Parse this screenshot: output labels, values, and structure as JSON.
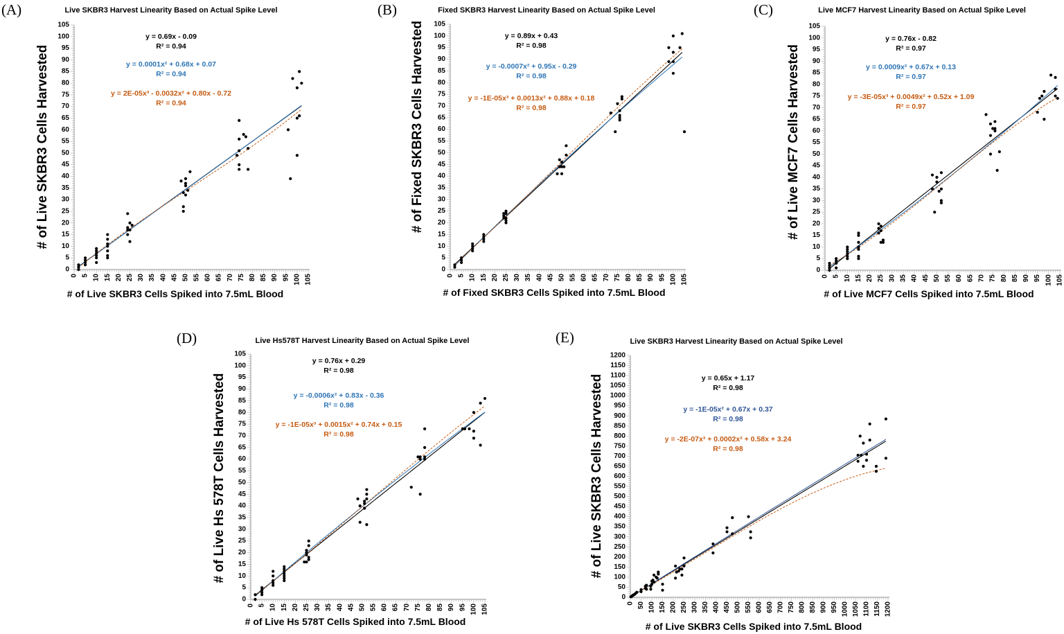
{
  "chart_data": [
    {
      "type": "scatter",
      "panel": "(A)",
      "title": "Live SKBR3 Harvest Linearity Based on Actual Spike Level",
      "xlabel": "# of Live SKBR3 Cells Spiked into 7.5mL Blood",
      "ylabel": "# of Live SKBR3 Cells Harvested",
      "xlim": [
        0,
        105
      ],
      "ylim": [
        0,
        105
      ],
      "tick_step": 5,
      "minor_step": 1,
      "fits": [
        {
          "kind": "linear",
          "equation": "y = 0.69x - 0.09",
          "r2": "R² = 0.94",
          "coef": [
            -0.09,
            0.69
          ],
          "color": "#000000"
        },
        {
          "kind": "quadratic",
          "equation": "y = 0.0001x² + 0.68x + 0.07",
          "r2": "R² = 0.94",
          "coef": [
            0.07,
            0.68,
            0.0001
          ],
          "color": "#2e75b6"
        },
        {
          "kind": "cubic",
          "equation": "y = 2E-05x³ - 0.0032x² + 0.80x - 0.72",
          "r2": "R² = 0.94",
          "coef": [
            -0.72,
            0.8,
            -0.0032,
            2e-05
          ],
          "color": "#c55a11"
        }
      ],
      "fit_range": [
        2,
        102
      ],
      "points": [
        [
          2,
          0
        ],
        [
          2,
          1
        ],
        [
          2,
          2
        ],
        [
          5,
          2
        ],
        [
          5,
          3
        ],
        [
          5,
          4
        ],
        [
          5,
          5
        ],
        [
          10,
          3
        ],
        [
          10,
          5
        ],
        [
          10,
          6
        ],
        [
          10,
          7
        ],
        [
          10,
          8
        ],
        [
          10,
          9
        ],
        [
          15,
          5
        ],
        [
          15,
          6
        ],
        [
          15,
          8
        ],
        [
          15,
          10
        ],
        [
          15,
          11
        ],
        [
          15,
          13
        ],
        [
          15,
          15
        ],
        [
          24,
          15
        ],
        [
          24,
          17
        ],
        [
          24,
          18
        ],
        [
          24,
          24
        ],
        [
          25,
          12
        ],
        [
          25,
          17
        ],
        [
          25,
          20
        ],
        [
          26,
          19
        ],
        [
          48,
          38
        ],
        [
          49,
          25
        ],
        [
          49,
          27
        ],
        [
          49,
          33
        ],
        [
          50,
          32
        ],
        [
          50,
          36
        ],
        [
          50,
          37
        ],
        [
          50,
          39
        ],
        [
          51,
          34
        ],
        [
          52,
          42
        ],
        [
          73,
          49
        ],
        [
          74,
          43
        ],
        [
          74,
          45
        ],
        [
          74,
          51
        ],
        [
          74,
          56
        ],
        [
          74,
          64
        ],
        [
          76,
          58
        ],
        [
          77,
          57
        ],
        [
          78,
          43
        ],
        [
          78,
          52
        ],
        [
          96,
          60
        ],
        [
          97,
          39
        ],
        [
          98,
          82
        ],
        [
          100,
          49
        ],
        [
          100,
          65
        ],
        [
          100,
          78
        ],
        [
          101,
          66
        ],
        [
          101,
          85
        ],
        [
          102,
          80
        ]
      ]
    },
    {
      "type": "scatter",
      "panel": "(B)",
      "title": "Fixed SKBR3 Harvest Linearity Based on Actual Spike Level",
      "xlabel": "# of Fixed SKBR3 Cells Spiked into 7.5mL Blood",
      "ylabel": "# of Fixed SKBR3 Cells Harvested",
      "xlim": [
        0,
        105
      ],
      "ylim": [
        0,
        105
      ],
      "tick_step": 5,
      "minor_step": 1,
      "fits": [
        {
          "kind": "linear",
          "equation": "y = 0.89x + 0.43",
          "r2": "R² = 0.98",
          "coef": [
            0.43,
            0.89
          ],
          "color": "#000000"
        },
        {
          "kind": "quadratic",
          "equation": "y = -0.0007x² + 0.95x - 0.29",
          "r2": "R² = 0.98",
          "coef": [
            -0.29,
            0.95,
            -0.0007
          ],
          "color": "#2e75b6"
        },
        {
          "kind": "cubic",
          "equation": "y = -1E-05x³ + 0.0013x² + 0.88x + 0.18",
          "r2": "R² = 0.98",
          "coef": [
            0.18,
            0.88,
            0.0013,
            -1e-05
          ],
          "color": "#c55a11"
        }
      ],
      "fit_range": [
        2,
        104
      ],
      "points": [
        [
          2,
          1
        ],
        [
          2,
          2
        ],
        [
          5,
          3
        ],
        [
          5,
          4
        ],
        [
          5,
          5
        ],
        [
          10,
          8
        ],
        [
          10,
          9
        ],
        [
          10,
          10
        ],
        [
          10,
          11
        ],
        [
          15,
          12
        ],
        [
          15,
          13
        ],
        [
          15,
          14
        ],
        [
          15,
          15
        ],
        [
          24,
          22
        ],
        [
          24,
          23
        ],
        [
          24,
          24
        ],
        [
          25,
          20
        ],
        [
          25,
          21
        ],
        [
          25,
          22
        ],
        [
          25,
          24
        ],
        [
          25,
          25
        ],
        [
          48,
          41
        ],
        [
          49,
          44
        ],
        [
          49,
          47
        ],
        [
          50,
          41
        ],
        [
          50,
          44
        ],
        [
          50,
          46
        ],
        [
          51,
          44
        ],
        [
          52,
          49
        ],
        [
          52,
          53
        ],
        [
          72,
          67
        ],
        [
          74,
          59
        ],
        [
          75,
          71
        ],
        [
          76,
          64
        ],
        [
          76,
          65
        ],
        [
          76,
          66
        ],
        [
          76,
          68
        ],
        [
          77,
          73
        ],
        [
          77,
          74
        ],
        [
          98,
          89
        ],
        [
          98,
          95
        ],
        [
          100,
          84
        ],
        [
          100,
          89
        ],
        [
          100,
          93
        ],
        [
          100,
          100
        ],
        [
          103,
          95
        ],
        [
          104,
          101
        ],
        [
          105,
          59
        ]
      ]
    },
    {
      "type": "scatter",
      "panel": "(C)",
      "title": "Live MCF7 Harvest Linearity Based on Actual Spike Level",
      "xlabel": "# of Live MCF7 Cells Spiked into 7.5mL Blood",
      "ylabel": "# of Live MCF7 Cells Harvested",
      "xlim": [
        0,
        105
      ],
      "ylim": [
        0,
        105
      ],
      "tick_step": 5,
      "minor_step": 1,
      "fits": [
        {
          "kind": "linear",
          "equation": "y = 0.76x - 0.82",
          "r2": "R² = 0.97",
          "coef": [
            -0.82,
            0.76
          ],
          "color": "#000000"
        },
        {
          "kind": "quadratic",
          "equation": "y = 0.0009x² + 0.67x + 0.13",
          "r2": "R² = 0.97",
          "coef": [
            0.13,
            0.67,
            0.0009
          ],
          "color": "#2e75b6"
        },
        {
          "kind": "cubic",
          "equation": "y = -3E-05x³ + 0.0049x² + 0.52x + 1.09",
          "r2": "R² = 0.97",
          "coef": [
            1.09,
            0.52,
            0.0049,
            -3e-05
          ],
          "color": "#c55a11"
        }
      ],
      "fit_range": [
        2,
        104
      ],
      "points": [
        [
          2,
          0
        ],
        [
          2,
          1
        ],
        [
          2,
          2
        ],
        [
          2,
          3
        ],
        [
          5,
          1
        ],
        [
          5,
          3
        ],
        [
          5,
          4
        ],
        [
          5,
          5
        ],
        [
          10,
          5
        ],
        [
          10,
          6
        ],
        [
          10,
          7
        ],
        [
          10,
          8
        ],
        [
          10,
          9
        ],
        [
          10,
          10
        ],
        [
          15,
          5
        ],
        [
          15,
          6
        ],
        [
          15,
          9
        ],
        [
          15,
          10
        ],
        [
          15,
          12
        ],
        [
          15,
          15
        ],
        [
          15,
          16
        ],
        [
          24,
          16
        ],
        [
          24,
          18
        ],
        [
          24,
          20
        ],
        [
          25,
          17
        ],
        [
          25,
          19
        ],
        [
          25,
          12
        ],
        [
          26,
          12
        ],
        [
          26,
          13
        ],
        [
          48,
          35
        ],
        [
          48,
          41
        ],
        [
          49,
          25
        ],
        [
          50,
          38
        ],
        [
          50,
          40
        ],
        [
          51,
          34
        ],
        [
          52,
          29
        ],
        [
          52,
          30
        ],
        [
          52,
          35
        ],
        [
          52,
          42
        ],
        [
          72,
          67
        ],
        [
          74,
          50
        ],
        [
          74,
          58
        ],
        [
          74,
          63
        ],
        [
          75,
          61
        ],
        [
          76,
          60
        ],
        [
          76,
          61
        ],
        [
          76,
          64
        ],
        [
          77,
          43
        ],
        [
          78,
          51
        ],
        [
          95,
          68
        ],
        [
          96,
          74
        ],
        [
          97,
          75
        ],
        [
          98,
          65
        ],
        [
          98,
          77
        ],
        [
          101,
          84
        ],
        [
          103,
          75
        ],
        [
          103,
          78
        ],
        [
          103,
          83
        ],
        [
          104,
          74
        ]
      ]
    },
    {
      "type": "scatter",
      "panel": "(D)",
      "title": "Live Hs578T Harvest Linearity Based on Actual Spike Level",
      "xlabel": "# of Live Hs 578T Cells Spiked into 7.5mL Blood",
      "ylabel": "# of Live Hs 578T Cells Harvested",
      "xlim": [
        0,
        105
      ],
      "ylim": [
        0,
        105
      ],
      "tick_step": 5,
      "minor_step": 1,
      "fits": [
        {
          "kind": "linear",
          "equation": "y = 0.76x + 0.29",
          "r2": "R² = 0.98",
          "coef": [
            0.29,
            0.76
          ],
          "color": "#000000"
        },
        {
          "kind": "quadratic",
          "equation": "y = -0.0006x² + 0.83x - 0.36",
          "r2": "R² = 0.98",
          "coef": [
            -0.36,
            0.83,
            -0.0006
          ],
          "color": "#2e75b6"
        },
        {
          "kind": "cubic",
          "equation": "y = -1E-05x³ + 0.0015x² + 0.74x + 0.15",
          "r2": "R² = 0.98",
          "coef": [
            0.15,
            0.74,
            0.0015,
            -1e-05
          ],
          "color": "#c55a11"
        }
      ],
      "fit_range": [
        2,
        105
      ],
      "points": [
        [
          2,
          0
        ],
        [
          2,
          2
        ],
        [
          5,
          2
        ],
        [
          5,
          3
        ],
        [
          5,
          4
        ],
        [
          5,
          5
        ],
        [
          10,
          6
        ],
        [
          10,
          7
        ],
        [
          10,
          8
        ],
        [
          10,
          10
        ],
        [
          10,
          12
        ],
        [
          15,
          8
        ],
        [
          15,
          9
        ],
        [
          15,
          10
        ],
        [
          15,
          11
        ],
        [
          15,
          12
        ],
        [
          15,
          13
        ],
        [
          15,
          14
        ],
        [
          24,
          16
        ],
        [
          25,
          16
        ],
        [
          25,
          19
        ],
        [
          25,
          20
        ],
        [
          25,
          21
        ],
        [
          26,
          17
        ],
        [
          26,
          18
        ],
        [
          26,
          23
        ],
        [
          26,
          25
        ],
        [
          48,
          43
        ],
        [
          49,
          33
        ],
        [
          49,
          40
        ],
        [
          51,
          39
        ],
        [
          51,
          41
        ],
        [
          51,
          42
        ],
        [
          52,
          32
        ],
        [
          52,
          43
        ],
        [
          52,
          45
        ],
        [
          52,
          47
        ],
        [
          72,
          48
        ],
        [
          75,
          61
        ],
        [
          76,
          45
        ],
        [
          76,
          60
        ],
        [
          76,
          61
        ],
        [
          78,
          60
        ],
        [
          78,
          61
        ],
        [
          78,
          65
        ],
        [
          78,
          73
        ],
        [
          95,
          73
        ],
        [
          96,
          73
        ],
        [
          98,
          73
        ],
        [
          100,
          69
        ],
        [
          100,
          72
        ],
        [
          100,
          80
        ],
        [
          103,
          66
        ],
        [
          103,
          84
        ],
        [
          105,
          86
        ]
      ]
    },
    {
      "type": "scatter",
      "panel": "(E)",
      "title": "Live SKBR3 Harvest Linearity Based on Actual Spike Level",
      "xlabel": "# of Live SKBR3 Cells Spiked into 7.5mL Blood",
      "ylabel": "# of Live SKBR3 Cells Harvested",
      "xlim": [
        0,
        1200
      ],
      "ylim": [
        0,
        1200
      ],
      "tick_step": 50,
      "minor_step": 10,
      "fits": [
        {
          "kind": "linear",
          "equation": "y = 0.65x + 1.17",
          "r2": "R² = 0.98",
          "coef": [
            1.17,
            0.65
          ],
          "color": "#000000"
        },
        {
          "kind": "quadratic",
          "equation": "y = -1E-05x² + 0.67x + 0.37",
          "r2": "R² = 0.98",
          "coef": [
            0.37,
            0.67,
            -1e-05
          ],
          "color": "#2f5597"
        },
        {
          "kind": "cubic",
          "equation": "y = -2E-07x³ + 0.0002x² + 0.58x + 3.24",
          "r2": "R² = 0.98",
          "coef": [
            3.24,
            0.58,
            0.0002,
            -2e-07
          ],
          "color": "#c55a11"
        }
      ],
      "fit_range": [
        0,
        1190
      ],
      "points": [
        [
          2,
          2
        ],
        [
          5,
          4
        ],
        [
          8,
          6
        ],
        [
          10,
          8
        ],
        [
          12,
          10
        ],
        [
          15,
          12
        ],
        [
          20,
          15
        ],
        [
          25,
          20
        ],
        [
          30,
          25
        ],
        [
          50,
          28
        ],
        [
          50,
          38
        ],
        [
          70,
          45
        ],
        [
          70,
          55
        ],
        [
          75,
          60
        ],
        [
          75,
          40
        ],
        [
          95,
          40
        ],
        [
          95,
          55
        ],
        [
          100,
          65
        ],
        [
          100,
          80
        ],
        [
          105,
          85
        ],
        [
          110,
          75
        ],
        [
          110,
          110
        ],
        [
          120,
          100
        ],
        [
          125,
          95
        ],
        [
          130,
          115
        ],
        [
          130,
          125
        ],
        [
          150,
          35
        ],
        [
          150,
          65
        ],
        [
          210,
          95
        ],
        [
          210,
          155
        ],
        [
          215,
          125
        ],
        [
          225,
          130
        ],
        [
          230,
          140
        ],
        [
          240,
          110
        ],
        [
          240,
          140
        ],
        [
          250,
          155
        ],
        [
          250,
          195
        ],
        [
          385,
          265
        ],
        [
          385,
          220
        ],
        [
          450,
          345
        ],
        [
          450,
          325
        ],
        [
          475,
          395
        ],
        [
          475,
          315
        ],
        [
          550,
          400
        ],
        [
          560,
          325
        ],
        [
          560,
          295
        ],
        [
          1060,
          705
        ],
        [
          1060,
          675
        ],
        [
          1070,
          800
        ],
        [
          1075,
          705
        ],
        [
          1085,
          765
        ],
        [
          1085,
          650
        ],
        [
          1100,
          710
        ],
        [
          1100,
          680
        ],
        [
          1115,
          860
        ],
        [
          1115,
          780
        ],
        [
          1145,
          650
        ],
        [
          1145,
          625
        ],
        [
          1190,
          885
        ],
        [
          1190,
          690
        ]
      ]
    }
  ]
}
